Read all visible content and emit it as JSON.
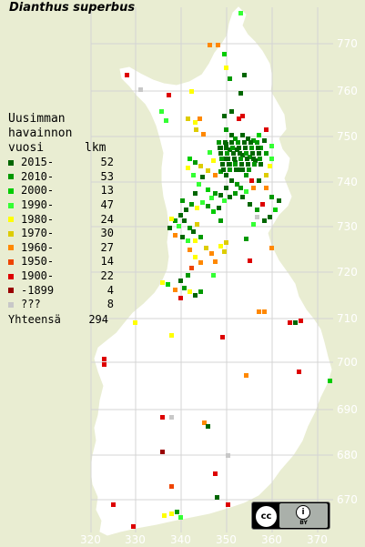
{
  "title": "Dianthus superbus",
  "legend": {
    "heading_lines": [
      "Uusimman",
      "havainnon"
    ],
    "col_year": "vuosi",
    "col_count": "lkm",
    "items": [
      {
        "label": "2015-",
        "count": "52",
        "color": "#006600"
      },
      {
        "label": "2010-",
        "count": "53",
        "color": "#009900"
      },
      {
        "label": "2000-",
        "count": "13",
        "color": "#00cc00"
      },
      {
        "label": "1990-",
        "count": "47",
        "color": "#33ff33"
      },
      {
        "label": "1980-",
        "count": "24",
        "color": "#ffff00"
      },
      {
        "label": "1970-",
        "count": "30",
        "color": "#ddcc00"
      },
      {
        "label": "1960-",
        "count": "27",
        "color": "#ff8800"
      },
      {
        "label": "1950-",
        "count": "14",
        "color": "#ee4400"
      },
      {
        "label": "1900-",
        "count": "22",
        "color": "#dd0000"
      },
      {
        "label": "-1899",
        "count": "4",
        "color": "#990000"
      },
      {
        "label": "???",
        "count": "8",
        "color": "#c8c8c8"
      }
    ],
    "total_label": "Yhteensä",
    "total": "294"
  },
  "axes": {
    "northing_labels": [
      "770",
      "760",
      "750",
      "740",
      "730",
      "720",
      "710",
      "700",
      "690",
      "680",
      "670"
    ],
    "easting_labels": [
      "320",
      "330",
      "340",
      "350",
      "360",
      "370"
    ]
  },
  "license": {
    "cc": "cc",
    "by_symbol": "i",
    "by_text": "BY"
  },
  "colors": {
    "background": "#e9edd2",
    "land": "#ffffff",
    "grid": "#d4d4d4",
    "axis_text": "#ffffff"
  }
}
